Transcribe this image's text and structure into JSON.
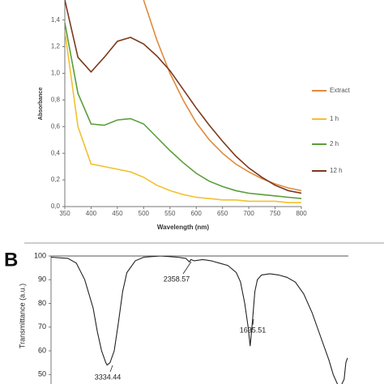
{
  "chart_data": [
    {
      "type": "line",
      "x_label": "Wavelength (nm)",
      "y_label": "Absorbance",
      "x": [
        350,
        375,
        400,
        425,
        450,
        475,
        500,
        525,
        550,
        575,
        600,
        625,
        650,
        675,
        700,
        725,
        750,
        775,
        800
      ],
      "series": [
        {
          "name": "Extract",
          "color": "#e08a3c",
          "values": [
            null,
            null,
            null,
            null,
            null,
            null,
            1.55,
            1.25,
            1.0,
            0.8,
            0.63,
            0.5,
            0.4,
            0.32,
            0.26,
            0.21,
            0.17,
            0.14,
            0.12
          ]
        },
        {
          "name": "1 h",
          "color": "#f2c12e",
          "values": [
            1.32,
            0.6,
            0.32,
            0.3,
            0.28,
            0.26,
            0.22,
            0.16,
            0.12,
            0.09,
            0.07,
            0.06,
            0.05,
            0.05,
            0.04,
            0.04,
            0.04,
            0.03,
            0.03
          ]
        },
        {
          "name": "2 h",
          "color": "#5a9e3a",
          "values": [
            1.38,
            0.85,
            0.62,
            0.61,
            0.65,
            0.66,
            0.62,
            0.52,
            0.42,
            0.33,
            0.25,
            0.19,
            0.15,
            0.12,
            0.1,
            0.09,
            0.08,
            0.07,
            0.06
          ]
        },
        {
          "name": "12 h",
          "color": "#7b3a1e",
          "values": [
            1.55,
            1.12,
            1.01,
            1.12,
            1.24,
            1.27,
            1.22,
            1.13,
            1.02,
            0.88,
            0.74,
            0.61,
            0.49,
            0.38,
            0.29,
            0.22,
            0.16,
            0.12,
            0.1
          ]
        }
      ],
      "xlim": [
        350,
        800
      ],
      "xticks": [
        350,
        400,
        450,
        500,
        550,
        600,
        650,
        700,
        750,
        800
      ],
      "ylim": [
        0,
        1.55
      ],
      "yticks": [
        {
          "value": 0,
          "label": "0,0"
        },
        {
          "value": 0.2,
          "label": "0,2"
        },
        {
          "value": 0.4,
          "label": "0,4"
        },
        {
          "value": 0.6,
          "label": "0,6"
        },
        {
          "value": 0.8,
          "label": "0,8"
        },
        {
          "value": 1.0,
          "label": "1,0"
        },
        {
          "value": 1.2,
          "label": "1,2"
        },
        {
          "value": 1.4,
          "label": "1,4"
        }
      ],
      "legend": "right"
    },
    {
      "type": "line",
      "panel_label": "B",
      "y_label": "Transmittance (a.u.)",
      "x": [
        4000,
        3800,
        3700,
        3600,
        3500,
        3450,
        3400,
        3350,
        3334.44,
        3300,
        3250,
        3200,
        3150,
        3100,
        3000,
        2900,
        2700,
        2500,
        2400,
        2358.57,
        2340,
        2300,
        2200,
        2100,
        2000,
        1900,
        1800,
        1750,
        1700,
        1660,
        1635.51,
        1610,
        1580,
        1550,
        1500,
        1400,
        1300,
        1200,
        1100,
        1000,
        900,
        800,
        700,
        650,
        600,
        560,
        520,
        500,
        480
      ],
      "series": [
        {
          "name": null,
          "color": "#222222",
          "values": [
            99.5,
            99,
            97,
            90,
            78,
            68,
            60,
            55,
            54,
            55,
            60,
            72,
            85,
            93,
            98,
            99.5,
            100,
            99.5,
            99,
            97.5,
            98.5,
            98,
            98.5,
            98,
            97,
            96,
            93,
            89,
            80,
            70,
            62,
            72,
            85,
            90,
            92,
            92.5,
            92,
            91,
            89,
            84,
            76,
            66,
            56,
            50,
            46,
            45,
            48,
            55,
            57
          ]
        }
      ],
      "annotations": [
        "3334.44",
        "2358.57",
        "1635.51"
      ],
      "xlim": [
        4000,
        470
      ],
      "ylim": [
        46,
        100
      ],
      "yticks": [
        50,
        60,
        70,
        80,
        90,
        100
      ]
    }
  ]
}
